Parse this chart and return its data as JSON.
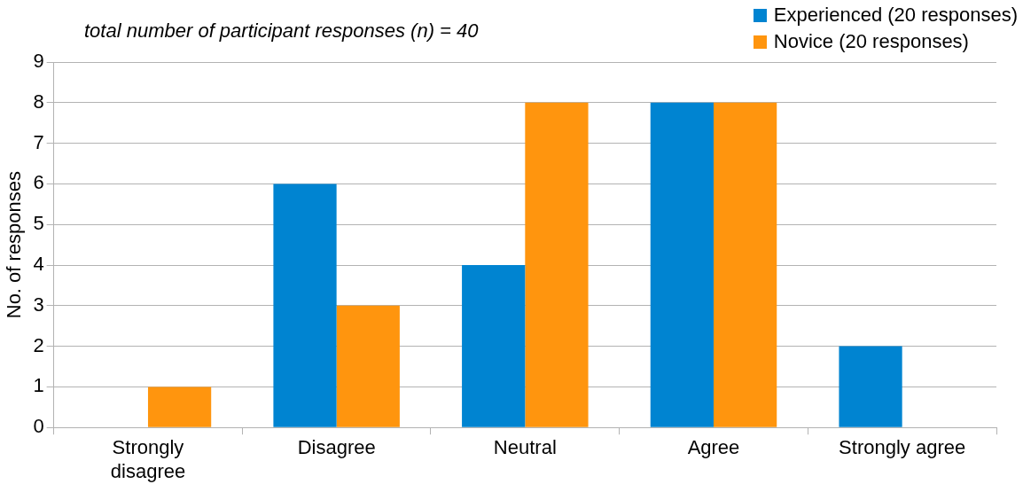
{
  "chart_data": {
    "type": "bar",
    "ylabel": "No. of responses",
    "annotations": [
      "total number of participant responses (n) = 40"
    ],
    "categories": [
      "Strongly disagree",
      "Disagree",
      "Neutral",
      "Agree",
      "Strongly agree"
    ],
    "series": [
      {
        "name": "Experienced (20 responses)",
        "color": "#0084d1",
        "values": [
          0,
          6,
          4,
          8,
          2
        ]
      },
      {
        "name": "Novice (20 responses)",
        "color": "#ff950e",
        "values": [
          1,
          3,
          8,
          8,
          0
        ]
      }
    ],
    "ylim": [
      0,
      9
    ],
    "yticks": [
      0,
      1,
      2,
      3,
      4,
      5,
      6,
      7,
      8,
      9
    ],
    "grid": "y",
    "legend": "top right"
  }
}
